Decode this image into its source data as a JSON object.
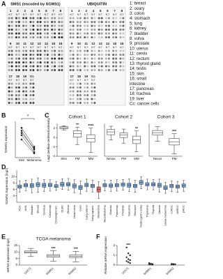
{
  "panel_labels": [
    "A",
    "B",
    "C",
    "D",
    "E",
    "F"
  ],
  "panel_a": {
    "blots": [
      {
        "title": "SMS1 (encoded by SGMS1)",
        "col_header": "N T",
        "rows": [
          [
            "1",
            "2",
            "3",
            "4",
            "5",
            "6",
            "7",
            "8"
          ],
          [
            "9",
            "10",
            "11",
            "12",
            "13",
            "14",
            "15",
            "16"
          ],
          [
            "17",
            "18",
            "19",
            "Cc"
          ]
        ]
      },
      {
        "title": "UBIQUITIN",
        "col_header": "N T",
        "rows": [
          [
            "1",
            "2",
            "3",
            "4",
            "5",
            "6",
            "7",
            "8"
          ],
          [
            "9",
            "10",
            "11",
            "12",
            "13",
            "14",
            "15",
            "16"
          ],
          [
            "17",
            "18",
            "19",
            "Cc"
          ]
        ]
      }
    ],
    "legend": [
      "1: breast",
      "2: ovary",
      "3: colon",
      "4: stomach",
      "5: lung",
      "6: kidney",
      "7: bladder",
      "8: vulva",
      "9: prostate",
      "10: uterus",
      "11: cervix",
      "12: rectum",
      "13: thyroid gland",
      "14: testis",
      "15: skin",
      "16: small",
      "intestine",
      "17: pancreas",
      "18: trachea",
      "19: liver",
      "Cc: cancer cells"
    ]
  },
  "chart_data": [
    {
      "type": "line",
      "ylabel": "SGMS1 expression",
      "categories": [
        "Skin",
        "Melanoma"
      ],
      "annotation": "*",
      "color": "#222222",
      "ylim": [
        0,
        1
      ],
      "series": [
        {
          "values": [
            0.82,
            0.3
          ]
        },
        {
          "values": [
            0.74,
            0.22
          ]
        },
        {
          "values": [
            0.68,
            0.26
          ]
        },
        {
          "values": [
            0.62,
            0.15
          ]
        },
        {
          "values": [
            0.5,
            0.12
          ]
        }
      ]
    },
    {
      "type": "box",
      "title": "Cohort 1",
      "ylabel": "Lag2 median-centered intensity",
      "categories": [
        "Skin",
        "PM",
        "MM"
      ],
      "annotations": [
        null,
        "**",
        "****"
      ],
      "color": "#ffffff",
      "ylim": [
        -4,
        3
      ],
      "yticks": [
        -4,
        -2,
        0,
        2
      ],
      "boxes": [
        {
          "min": 1.6,
          "q1": 1.9,
          "median": 2.1,
          "q3": 2.3,
          "max": 2.5
        },
        {
          "min": -1.5,
          "q1": 0.1,
          "median": 0.8,
          "q3": 1.4,
          "max": 2.2
        },
        {
          "min": -3.2,
          "q1": -1.0,
          "median": -0.2,
          "q3": 0.6,
          "max": 2.0
        }
      ]
    },
    {
      "type": "box",
      "title": "Cohort 2",
      "categories": [
        "Nevus",
        "PM",
        "MM"
      ],
      "annotations": [
        null,
        null,
        "**"
      ],
      "color": "#ffffff",
      "ylim": [
        -4,
        3
      ],
      "boxes": [
        {
          "min": -0.5,
          "q1": 0.6,
          "median": 1.2,
          "q3": 1.7,
          "max": 2.4
        },
        {
          "min": -1.2,
          "q1": 0.0,
          "median": 0.5,
          "q3": 1.0,
          "max": 1.8
        },
        {
          "min": -3.0,
          "q1": -1.3,
          "median": -0.5,
          "q3": 0.3,
          "max": 1.4
        }
      ]
    },
    {
      "type": "box",
      "title": "Cohort 3",
      "categories": [
        "Nevus",
        "PM"
      ],
      "annotations": [
        null,
        "***"
      ],
      "color": "#ffffff",
      "ylim": [
        -4,
        3
      ],
      "boxes": [
        {
          "min": -0.8,
          "q1": 0.5,
          "median": 1.0,
          "q3": 1.5,
          "max": 2.3
        },
        {
          "min": -3.5,
          "q1": -1.6,
          "median": -0.9,
          "q3": -0.2,
          "max": 0.8
        }
      ]
    },
    {
      "type": "box",
      "ylabel": "SGMS1 Expression (log2)",
      "color": "#6fa8dc",
      "highlight_index": 13,
      "highlight_color": "#e06666",
      "ylim": [
        2,
        12
      ],
      "yticks": [
        4,
        6,
        8,
        10
      ],
      "categories": [
        "ACC",
        "AML",
        "Bladder",
        "Breast",
        "Cervical",
        "Colorectal",
        "Cholangiocarc.",
        "DLBC",
        "Glioma",
        "Head neck",
        "Liver",
        "Lung adeno",
        "Lung squam.",
        "Melanoma",
        "Mesothelioma",
        "Ovarian",
        "Pancreas",
        "Prostate",
        "Sarcoma",
        "Stomach",
        "Testis (germ cells)",
        "Thymoma",
        "Thyroid",
        "Uterine",
        "Uveal melanoma",
        "ccRCC",
        "chRCC",
        "pRCC"
      ],
      "boxes": [
        {
          "min": 5.2,
          "q1": 6.4,
          "median": 6.9,
          "q3": 7.4,
          "max": 8.6
        },
        {
          "min": 5.6,
          "q1": 6.8,
          "median": 7.3,
          "q3": 7.8,
          "max": 8.9
        },
        {
          "min": 5.0,
          "q1": 6.6,
          "median": 7.2,
          "q3": 7.8,
          "max": 9.2
        },
        {
          "min": 5.1,
          "q1": 6.9,
          "median": 7.5,
          "q3": 8.1,
          "max": 9.6
        },
        {
          "min": 5.3,
          "q1": 6.7,
          "median": 7.3,
          "q3": 7.9,
          "max": 9.1
        },
        {
          "min": 5.5,
          "q1": 6.9,
          "median": 7.4,
          "q3": 7.9,
          "max": 9.0
        },
        {
          "min": 5.7,
          "q1": 6.6,
          "median": 7.0,
          "q3": 7.5,
          "max": 8.4
        },
        {
          "min": 6.0,
          "q1": 7.0,
          "median": 7.6,
          "q3": 8.2,
          "max": 9.3
        },
        {
          "min": 5.8,
          "q1": 7.1,
          "median": 7.6,
          "q3": 8.1,
          "max": 9.4
        },
        {
          "min": 5.0,
          "q1": 6.5,
          "median": 7.1,
          "q3": 7.7,
          "max": 9.0
        },
        {
          "min": 4.6,
          "q1": 6.0,
          "median": 6.6,
          "q3": 7.2,
          "max": 8.6
        },
        {
          "min": 5.4,
          "q1": 6.9,
          "median": 7.4,
          "q3": 7.9,
          "max": 9.2
        },
        {
          "min": 5.2,
          "q1": 6.6,
          "median": 7.1,
          "q3": 7.6,
          "max": 8.9
        },
        {
          "min": 3.2,
          "q1": 5.2,
          "median": 6.0,
          "q3": 6.8,
          "max": 8.4
        },
        {
          "min": 5.6,
          "q1": 6.8,
          "median": 7.3,
          "q3": 7.8,
          "max": 8.8
        },
        {
          "min": 5.4,
          "q1": 6.7,
          "median": 7.2,
          "q3": 7.7,
          "max": 8.9
        },
        {
          "min": 5.5,
          "q1": 6.8,
          "median": 7.3,
          "q3": 7.8,
          "max": 9.0
        },
        {
          "min": 5.8,
          "q1": 7.0,
          "median": 7.5,
          "q3": 8.0,
          "max": 9.1
        },
        {
          "min": 5.3,
          "q1": 6.7,
          "median": 7.3,
          "q3": 7.9,
          "max": 9.3
        },
        {
          "min": 5.1,
          "q1": 6.6,
          "median": 7.1,
          "q3": 7.6,
          "max": 8.9
        },
        {
          "min": 6.2,
          "q1": 7.6,
          "median": 8.2,
          "q3": 8.8,
          "max": 10.0
        },
        {
          "min": 5.9,
          "q1": 7.1,
          "median": 7.6,
          "q3": 8.1,
          "max": 9.2
        },
        {
          "min": 5.9,
          "q1": 7.1,
          "median": 7.6,
          "q3": 8.1,
          "max": 9.1
        },
        {
          "min": 5.2,
          "q1": 6.7,
          "median": 7.3,
          "q3": 7.9,
          "max": 9.2
        },
        {
          "min": 4.8,
          "q1": 6.0,
          "median": 6.5,
          "q3": 7.1,
          "max": 8.2
        },
        {
          "min": 5.3,
          "q1": 6.6,
          "median": 7.1,
          "q3": 7.6,
          "max": 8.7
        },
        {
          "min": 5.1,
          "q1": 6.4,
          "median": 6.9,
          "q3": 7.4,
          "max": 8.5
        },
        {
          "min": 5.4,
          "q1": 6.7,
          "median": 7.2,
          "q3": 7.7,
          "max": 8.8
        }
      ]
    },
    {
      "type": "box",
      "title": "TCGA melanoma",
      "ylabel": "mRNA expression (log2)",
      "categories": [
        "UGCG",
        "SGMS1",
        "SGMS2"
      ],
      "annotations": [
        null,
        "***",
        "***"
      ],
      "color": "#ffffff",
      "ylim": [
        0,
        15
      ],
      "yticks": [
        0,
        5,
        10,
        15
      ],
      "boxes": [
        {
          "min": 6.5,
          "q1": 9.2,
          "median": 10.0,
          "q3": 10.8,
          "max": 12.8
        },
        {
          "min": 3.0,
          "q1": 6.0,
          "median": 7.0,
          "q3": 8.0,
          "max": 11.0
        },
        {
          "min": 2.5,
          "q1": 5.8,
          "median": 6.8,
          "q3": 7.8,
          "max": 10.5
        }
      ]
    },
    {
      "type": "scatter",
      "ylabel": "Relative mRNA expression",
      "categories": [
        "UGCG",
        "SGMS1",
        "SGMS2"
      ],
      "annotations": [
        "***",
        null,
        null
      ],
      "color": "#222222",
      "ylim": [
        0,
        2
      ],
      "yticks": [
        0,
        1,
        2
      ],
      "groups": [
        [
          1.8,
          1.2,
          1.0,
          0.8,
          0.6,
          0.5,
          0.4,
          0.3,
          0.2
        ],
        [
          0.2,
          0.15,
          0.1,
          0.08,
          0.05,
          0.05
        ],
        [
          0.12,
          0.1,
          0.08,
          0.05,
          0.04
        ]
      ]
    }
  ]
}
